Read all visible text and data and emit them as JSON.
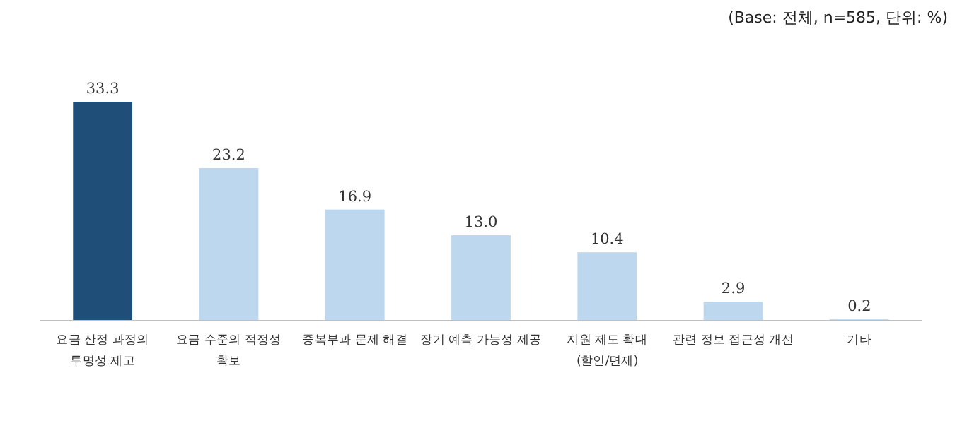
{
  "chart_data": {
    "type": "bar",
    "categories": [
      "요금 산정 과정의\n투명성 제고",
      "요금 수준의 적정성\n확보",
      "중복부과 문제 해결",
      "장기 예측 가능성 제공",
      "지원 제도 확대\n(할인/면제)",
      "관련 정보 접근성 개선",
      "기타"
    ],
    "values": [
      33.3,
      23.2,
      16.9,
      13.0,
      10.4,
      2.9,
      0.2
    ],
    "colors": [
      "#1f4e79",
      "#bdd7ee",
      "#bdd7ee",
      "#bdd7ee",
      "#bdd7ee",
      "#bdd7ee",
      "#bdd7ee"
    ],
    "value_labels": [
      "33.3",
      "23.2",
      "16.9",
      "13.0",
      "10.4",
      "2.9",
      "0.2"
    ],
    "annotations": [
      "(Base: 전체, n=585, 단위: %)"
    ]
  }
}
